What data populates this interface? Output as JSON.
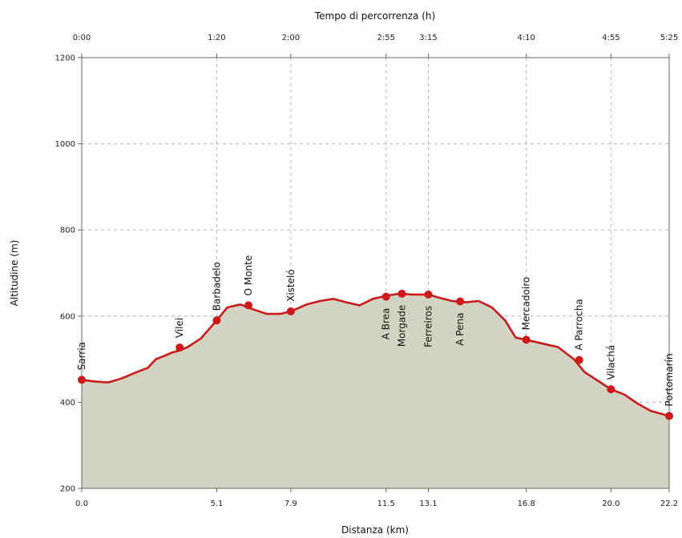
{
  "chart_data": {
    "type": "area",
    "title": "",
    "xlabel": "Distanza (km)",
    "ylabel": "Altitudine (m)",
    "top_xlabel": "Tempo di percorrenza (h)",
    "xlim": [
      0.0,
      22.2
    ],
    "ylim": [
      200,
      1200
    ],
    "y_ticks": [
      200,
      400,
      600,
      800,
      1000,
      1200
    ],
    "x_ticks": [
      {
        "value": 0.0,
        "label": "0.0"
      },
      {
        "value": 5.1,
        "label": "5.1"
      },
      {
        "value": 7.9,
        "label": "7.9"
      },
      {
        "value": 11.5,
        "label": "11.5"
      },
      {
        "value": 13.1,
        "label": "13.1"
      },
      {
        "value": 16.8,
        "label": "16.8"
      },
      {
        "value": 20.0,
        "label": "20.0"
      },
      {
        "value": 22.2,
        "label": "22.2"
      }
    ],
    "top_ticks": [
      {
        "value": 0.0,
        "label": "0:00"
      },
      {
        "value": 5.1,
        "label": "1:20"
      },
      {
        "value": 7.9,
        "label": "2:00"
      },
      {
        "value": 11.5,
        "label": "2:55"
      },
      {
        "value": 13.1,
        "label": "3:15"
      },
      {
        "value": 16.8,
        "label": "4:10"
      },
      {
        "value": 20.0,
        "label": "4:55"
      },
      {
        "value": 22.2,
        "label": "5:25"
      }
    ],
    "grid": true,
    "profile": {
      "x": [
        0.0,
        0.5,
        1.0,
        1.5,
        2.0,
        2.5,
        2.8,
        3.1,
        3.4,
        3.7,
        4.0,
        4.5,
        5.1,
        5.5,
        6.0,
        6.5,
        7.0,
        7.5,
        7.9,
        8.5,
        9.0,
        9.5,
        10.0,
        10.5,
        11.0,
        11.5,
        12.0,
        12.5,
        13.1,
        13.5,
        14.0,
        14.5,
        15.0,
        15.5,
        16.0,
        16.4,
        16.8,
        17.5,
        18.0,
        18.6,
        19.0,
        19.5,
        20.0,
        20.5,
        21.0,
        21.5,
        22.2
      ],
      "y": [
        452,
        448,
        446,
        455,
        468,
        480,
        500,
        507,
        515,
        520,
        528,
        548,
        590,
        620,
        627,
        615,
        605,
        605,
        611,
        627,
        635,
        640,
        632,
        625,
        640,
        647,
        652,
        650,
        650,
        643,
        635,
        632,
        635,
        620,
        590,
        550,
        545,
        535,
        528,
        500,
        470,
        450,
        430,
        418,
        397,
        380,
        368
      ]
    },
    "waypoints": [
      {
        "name": "Sarria",
        "x": 0.0,
        "y": 452
      },
      {
        "name": "Vilei",
        "x": 3.7,
        "y": 527
      },
      {
        "name": "Barbadelo",
        "x": 5.1,
        "y": 590
      },
      {
        "name": "O Monte",
        "x": 6.3,
        "y": 625
      },
      {
        "name": "Xisteló",
        "x": 7.9,
        "y": 611
      },
      {
        "name": "A Brea",
        "x": 11.5,
        "y": 645
      },
      {
        "name": "Morgade",
        "x": 12.1,
        "y": 652
      },
      {
        "name": "Ferreiros",
        "x": 13.1,
        "y": 650
      },
      {
        "name": "A Pena",
        "x": 14.3,
        "y": 634
      },
      {
        "name": "Mercadoiro",
        "x": 16.8,
        "y": 545
      },
      {
        "name": "A Parrocha",
        "x": 18.8,
        "y": 498
      },
      {
        "name": "Vilachá",
        "x": 20.0,
        "y": 430
      },
      {
        "name": "Portomarín",
        "x": 22.2,
        "y": 368
      }
    ],
    "colors": {
      "line": "#cc1a1a",
      "marker": "#cc1a1a",
      "fill": "#d3d3c3",
      "grid": "#b5b5b5",
      "axis": "#666666"
    }
  }
}
